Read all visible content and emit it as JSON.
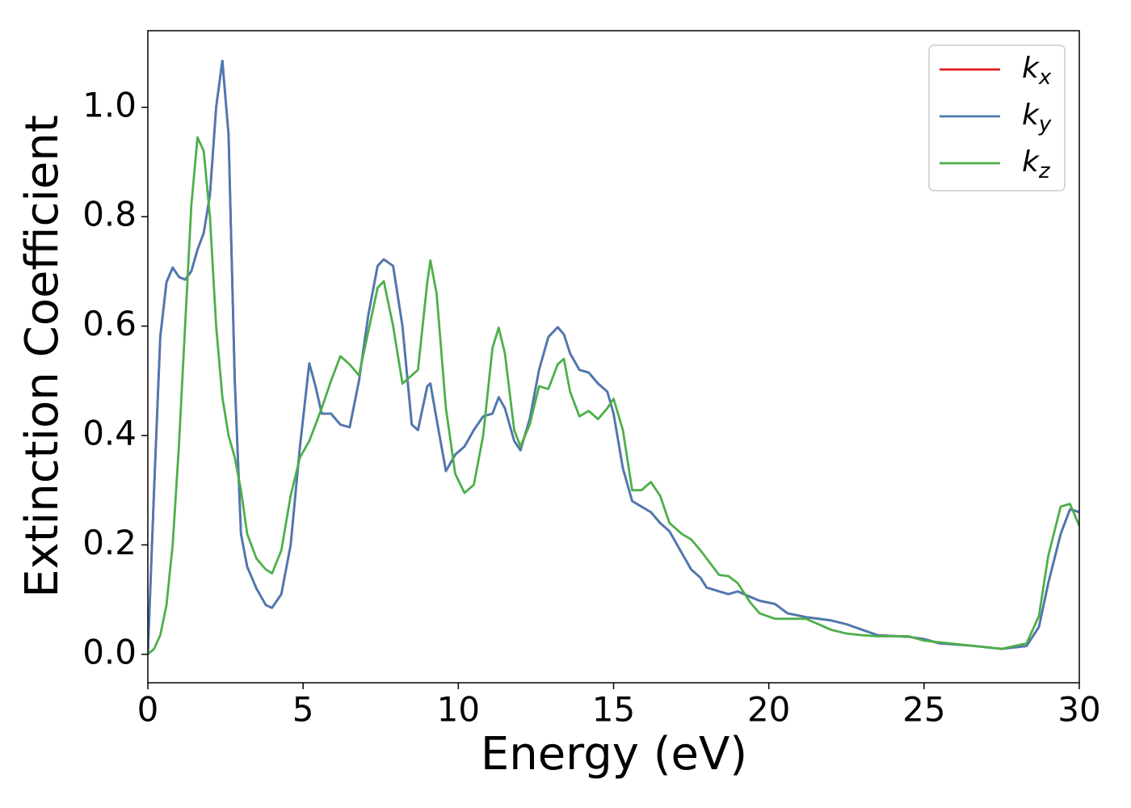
{
  "chart_data": {
    "type": "line",
    "xlabel": "Energy (eV)",
    "ylabel": "Extinction Coefficient",
    "xlim": [
      0,
      30
    ],
    "ylim": [
      -0.052,
      1.14
    ],
    "xticks": [
      0,
      5,
      10,
      15,
      20,
      25,
      30
    ],
    "yticks": [
      {
        "value": 0,
        "label": "0.0"
      },
      {
        "value": 0.2,
        "label": "0.2"
      },
      {
        "value": 0.4,
        "label": "0.4"
      },
      {
        "value": 0.6,
        "label": "0.6"
      },
      {
        "value": 0.8,
        "label": "0.8"
      },
      {
        "value": 1,
        "label": "1.0"
      }
    ],
    "legend": "upper right",
    "x": [
      0,
      0.2,
      0.4,
      0.6,
      0.8,
      1.0,
      1.2,
      1.4,
      1.6,
      1.8,
      2.0,
      2.2,
      2.4,
      2.6,
      2.8,
      3.0,
      3.2,
      3.5,
      3.8,
      4.0,
      4.3,
      4.6,
      4.9,
      5.2,
      5.4,
      5.6,
      5.9,
      6.2,
      6.5,
      6.8,
      7.1,
      7.4,
      7.6,
      7.9,
      8.2,
      8.5,
      8.7,
      9.0,
      9.1,
      9.3,
      9.6,
      9.9,
      10.2,
      10.5,
      10.8,
      11.1,
      11.3,
      11.5,
      11.8,
      12.0,
      12.3,
      12.6,
      12.9,
      13.2,
      13.4,
      13.6,
      13.9,
      14.2,
      14.5,
      14.8,
      15.0,
      15.3,
      15.6,
      15.9,
      16.2,
      16.5,
      16.8,
      17.2,
      17.5,
      17.8,
      18.0,
      18.4,
      18.7,
      19.0,
      19.4,
      19.7,
      20.2,
      20.6,
      21.2,
      22.0,
      22.5,
      23.0,
      23.5,
      24.5,
      25.0,
      25.5,
      26.5,
      27.5,
      28.3,
      28.7,
      29.0,
      29.4,
      29.7,
      30.0
    ],
    "series": [
      {
        "name": "kx",
        "color": "#e41a1c",
        "values": [
          0.0,
          0.3,
          0.58,
          0.68,
          0.707,
          0.69,
          0.685,
          0.7,
          0.74,
          0.77,
          0.84,
          1.0,
          1.085,
          0.95,
          0.5,
          0.22,
          0.16,
          0.12,
          0.09,
          0.085,
          0.11,
          0.2,
          0.38,
          0.532,
          0.49,
          0.44,
          0.44,
          0.42,
          0.415,
          0.5,
          0.62,
          0.71,
          0.722,
          0.71,
          0.6,
          0.42,
          0.41,
          0.49,
          0.495,
          0.43,
          0.335,
          0.365,
          0.38,
          0.41,
          0.435,
          0.44,
          0.47,
          0.45,
          0.39,
          0.373,
          0.43,
          0.52,
          0.58,
          0.598,
          0.585,
          0.55,
          0.52,
          0.515,
          0.495,
          0.48,
          0.44,
          0.34,
          0.28,
          0.27,
          0.26,
          0.24,
          0.225,
          0.185,
          0.155,
          0.14,
          0.122,
          0.115,
          0.11,
          0.115,
          0.105,
          0.098,
          0.092,
          0.075,
          0.068,
          0.062,
          0.055,
          0.045,
          0.035,
          0.032,
          0.028,
          0.02,
          0.016,
          0.01,
          0.015,
          0.05,
          0.13,
          0.22,
          0.265,
          0.26
        ]
      },
      {
        "name": "ky",
        "color": "#4a7ab4",
        "values": [
          0.0,
          0.3,
          0.58,
          0.68,
          0.707,
          0.69,
          0.685,
          0.7,
          0.74,
          0.77,
          0.84,
          1.0,
          1.085,
          0.95,
          0.5,
          0.22,
          0.16,
          0.12,
          0.09,
          0.085,
          0.11,
          0.2,
          0.38,
          0.532,
          0.49,
          0.44,
          0.44,
          0.42,
          0.415,
          0.5,
          0.62,
          0.71,
          0.722,
          0.71,
          0.6,
          0.42,
          0.41,
          0.49,
          0.495,
          0.43,
          0.335,
          0.365,
          0.38,
          0.41,
          0.435,
          0.44,
          0.47,
          0.45,
          0.39,
          0.373,
          0.43,
          0.52,
          0.58,
          0.598,
          0.585,
          0.55,
          0.52,
          0.515,
          0.495,
          0.48,
          0.44,
          0.34,
          0.28,
          0.27,
          0.26,
          0.24,
          0.225,
          0.185,
          0.155,
          0.14,
          0.122,
          0.115,
          0.11,
          0.115,
          0.105,
          0.098,
          0.092,
          0.075,
          0.068,
          0.062,
          0.055,
          0.045,
          0.035,
          0.032,
          0.028,
          0.02,
          0.016,
          0.01,
          0.015,
          0.05,
          0.13,
          0.22,
          0.265,
          0.26
        ]
      },
      {
        "name": "kz",
        "color": "#4daf4a",
        "values": [
          0.0,
          0.01,
          0.035,
          0.09,
          0.2,
          0.38,
          0.6,
          0.82,
          0.945,
          0.92,
          0.8,
          0.6,
          0.47,
          0.4,
          0.36,
          0.3,
          0.22,
          0.175,
          0.155,
          0.148,
          0.19,
          0.29,
          0.36,
          0.39,
          0.42,
          0.45,
          0.5,
          0.545,
          0.53,
          0.51,
          0.59,
          0.67,
          0.682,
          0.6,
          0.495,
          0.51,
          0.52,
          0.68,
          0.72,
          0.66,
          0.45,
          0.33,
          0.295,
          0.31,
          0.4,
          0.56,
          0.597,
          0.55,
          0.41,
          0.38,
          0.42,
          0.49,
          0.485,
          0.53,
          0.54,
          0.48,
          0.435,
          0.445,
          0.43,
          0.45,
          0.467,
          0.41,
          0.3,
          0.3,
          0.315,
          0.29,
          0.24,
          0.22,
          0.21,
          0.19,
          0.175,
          0.145,
          0.143,
          0.13,
          0.095,
          0.075,
          0.065,
          0.065,
          0.065,
          0.045,
          0.038,
          0.035,
          0.033,
          0.033,
          0.025,
          0.022,
          0.016,
          0.01,
          0.02,
          0.07,
          0.18,
          0.27,
          0.275,
          0.235
        ]
      }
    ]
  }
}
